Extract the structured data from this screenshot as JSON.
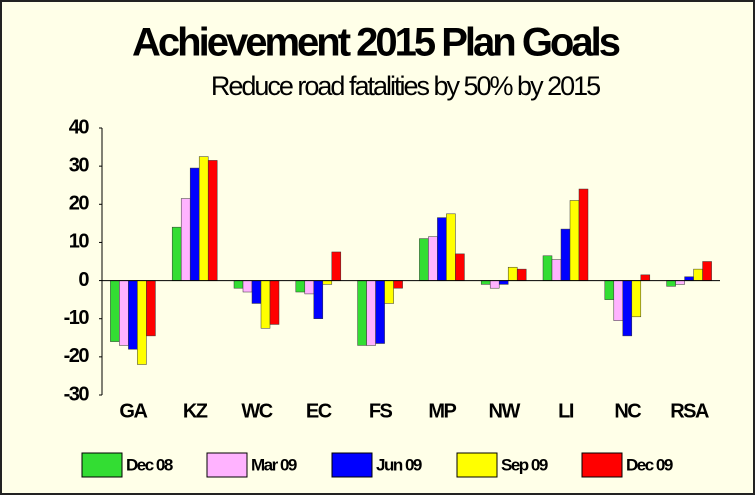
{
  "chart_data": {
    "type": "bar",
    "title": "Achievement 2015 Plan Goals",
    "subtitle": "Reduce road fatalities by 50% by 2015",
    "categories": [
      "GA",
      "KZ",
      "WC",
      "EC",
      "FS",
      "MP",
      "NW",
      "LI",
      "NC",
      "RSA"
    ],
    "series": [
      {
        "name": "Dec 08",
        "color": "#33dd33",
        "values": [
          -16,
          14,
          -2,
          -3,
          -17,
          11,
          -1,
          6.5,
          -5,
          -1.5
        ]
      },
      {
        "name": "Mar 09",
        "color": "#ffb3ff",
        "values": [
          -17,
          21.5,
          -3,
          -3.5,
          -17,
          11.5,
          -2,
          5.5,
          -10.5,
          -1
        ]
      },
      {
        "name": "Jun 09",
        "color": "#0000ff",
        "values": [
          -18,
          29.5,
          -6,
          -10,
          -16.5,
          16.5,
          -1,
          13.5,
          -14.5,
          1
        ]
      },
      {
        "name": "Sep 09",
        "color": "#ffff00",
        "values": [
          -22,
          32.5,
          -12.5,
          -1,
          -6,
          17.5,
          3.5,
          21,
          -9.5,
          3
        ]
      },
      {
        "name": "Dec 09",
        "color": "#ff0000",
        "values": [
          -14.5,
          31.5,
          -11.5,
          7.5,
          -2,
          7,
          3,
          24,
          1.5,
          5
        ]
      }
    ],
    "ylim": [
      -30,
      40
    ],
    "yticks": [
      -30,
      -20,
      -10,
      0,
      10,
      20,
      30,
      40
    ]
  }
}
